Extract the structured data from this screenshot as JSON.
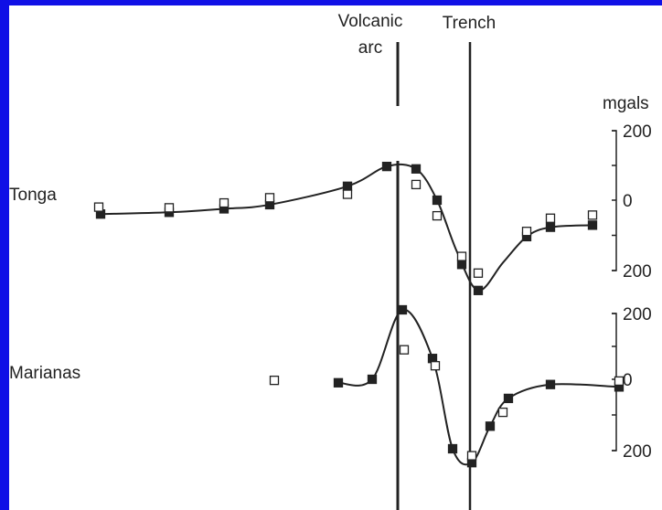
{
  "chart_data": [
    {
      "type": "scatter",
      "title": "Tonga",
      "ylabel": "mgals",
      "y_ticks": [
        "200",
        "0",
        "200"
      ],
      "ylim": [
        -200,
        200
      ],
      "series": [
        {
          "marker": "filled-square",
          "x": [
            100,
            175,
            235,
            285,
            370,
            413,
            445,
            468,
            495,
            513,
            566,
            592,
            638
          ],
          "values": [
            -40,
            -35,
            -25,
            -13,
            40,
            97,
            90,
            0,
            -185,
            -260,
            -105,
            -78,
            -72
          ]
        },
        {
          "marker": "open-square",
          "x": [
            98,
            175,
            235,
            285,
            370,
            445,
            468,
            495,
            513,
            566,
            592,
            638
          ],
          "values": [
            -20,
            -22,
            -8,
            7,
            17,
            45,
            -45,
            -162,
            -210,
            -90,
            -52,
            -43
          ]
        },
        {
          "name": "curve",
          "x": [
            100,
            175,
            235,
            285,
            370,
            413,
            445,
            468,
            490,
            513,
            540,
            566,
            592,
            638
          ],
          "values": [
            -40,
            -35,
            -25,
            -13,
            40,
            97,
            90,
            0,
            -150,
            -260,
            -180,
            -105,
            -78,
            -72
          ]
        }
      ]
    },
    {
      "type": "scatter",
      "title": "Marianas",
      "ylabel": "",
      "y_ticks": [
        "200",
        "0",
        "200"
      ],
      "ylim": [
        -200,
        200
      ],
      "series": [
        {
          "marker": "filled-square",
          "x": [
            360,
            397,
            430,
            463,
            485,
            506,
            526,
            546,
            592,
            667
          ],
          "values": [
            -10,
            0,
            200,
            60,
            -200,
            -240,
            -135,
            -55,
            -15,
            -22
          ]
        },
        {
          "marker": "open-square",
          "x": [
            290,
            432,
            466,
            506,
            540,
            667
          ],
          "values": [
            -3,
            85,
            39,
            -220,
            -95,
            -5
          ]
        },
        {
          "name": "curve",
          "x": [
            360,
            397,
            430,
            463,
            485,
            506,
            526,
            546,
            592,
            667
          ],
          "values": [
            -10,
            0,
            200,
            60,
            -200,
            -240,
            -135,
            -55,
            -15,
            -22
          ]
        }
      ]
    }
  ],
  "annotations": {
    "volcanic_arc_line1": "Volcanic",
    "volcanic_arc_line2": "arc",
    "trench": "Trench",
    "units": "mgals"
  },
  "colors": {
    "border": "#1010e6",
    "ink": "#222222"
  }
}
